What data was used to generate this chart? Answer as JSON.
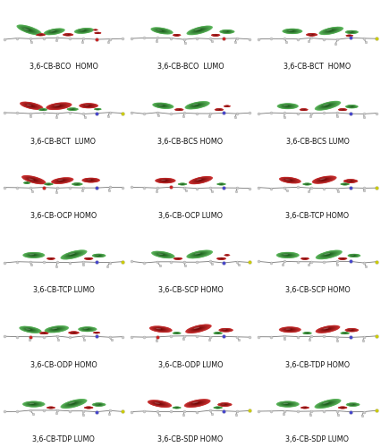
{
  "background_color": "#f5f5f5",
  "n_rows": 6,
  "n_cols": 3,
  "labels": [
    "3,6-CB-BCO  HOMO",
    "3,6-CB-BCO  LUMO",
    "3,6-CB-BCT  HOMO",
    "3,6-CB-BCT  LUMO",
    "3,6-CB-BCS HOMO",
    "3,6-CB-BCS LUMO",
    "3,6-CB-OCP HOMO",
    "3,6-CB-OCP LUMO",
    "3,6-CB-TCP HOMO",
    "3,6-CB-TCP LUMO",
    "3,6-CB-SCP HOMO",
    "3,6-CB-SCP HOMO",
    "3,6-CB-ODP HOMO",
    "3,6-CB-ODP LUMO",
    "3,6-CB-TDP HOMO",
    "3,6-CB-TDP LUMO",
    "3,6-CB-SDP HOMO",
    "3,6-CB-SDP LUMO"
  ],
  "label_fontsize": 5.8,
  "label_color": "#111111",
  "green_dark": "#145214",
  "green_mid": "#228B22",
  "green_light": "#5db85d",
  "red_dark": "#6b0000",
  "red_mid": "#aa0000",
  "red_light": "#cc3333",
  "fig_width": 4.26,
  "fig_height": 5.0,
  "dpi": 100
}
